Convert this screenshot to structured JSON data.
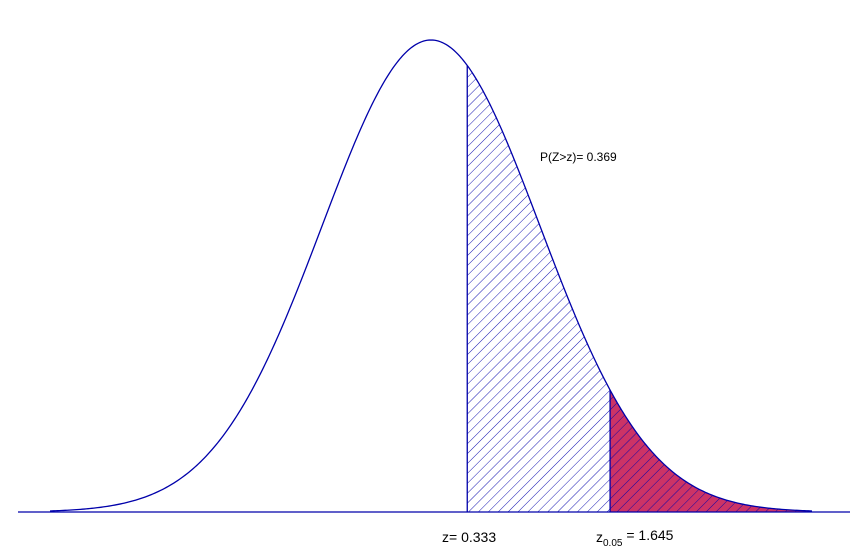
{
  "colors": {
    "curve": "#0000aa",
    "baseline": "#0000aa",
    "hatch": "#0000aa",
    "critical_fill": "#cc3366",
    "background": "#ffffff"
  },
  "labels": {
    "area": "P(Z>z)= 0.369",
    "z_value": "z= 0.333",
    "crit_z": "z",
    "crit_sub": "0.05",
    "crit_eq": " = 1.645"
  },
  "chart_data": {
    "type": "area",
    "title": "",
    "xlabel": "",
    "ylabel": "",
    "distribution": "standard normal",
    "xlim": [
      -3.5,
      3.5
    ],
    "z": 0.333,
    "p_upper": 0.369,
    "alpha": 0.05,
    "z_critical": 1.645,
    "regions": [
      {
        "name": "P(Z>z)",
        "from": 0.333,
        "to": 3.5,
        "style": "hatched"
      },
      {
        "name": "critical",
        "from": 1.645,
        "to": 3.5,
        "style": "filled-hatched"
      }
    ],
    "grid": false,
    "legend": "none"
  }
}
